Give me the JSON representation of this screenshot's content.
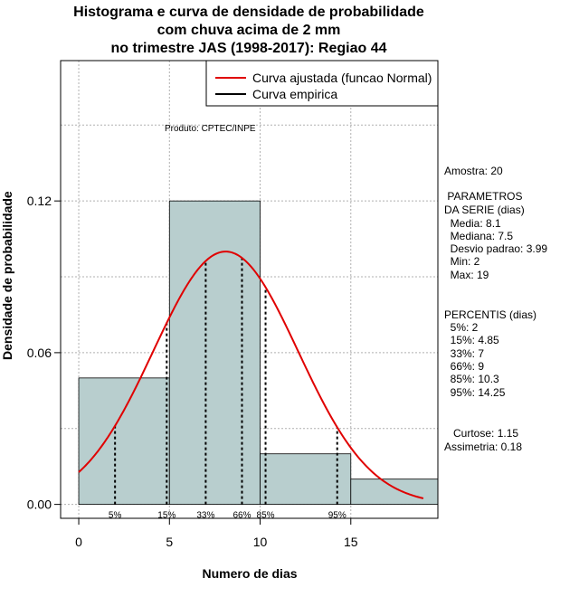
{
  "chart_data": {
    "type": "histogram",
    "title_lines": [
      "Histograma e curva de densidade de probabilidade",
      "com chuva acima de 2 mm",
      "no trimestre JAS (1998-2017): Regiao 44"
    ],
    "xlabel": "Numero de dias",
    "ylabel": "Densidade de probabilidade",
    "xlim": [
      -1,
      19.8
    ],
    "ylim": [
      -0.0055,
      0.1755
    ],
    "x_ticks": [
      0,
      5,
      10,
      15
    ],
    "y_ticks": [
      0.0,
      0.06,
      0.12
    ],
    "y_tick_labels": [
      "0.00",
      "0.06",
      "0.12"
    ],
    "grid": true,
    "bins": [
      {
        "from": 0,
        "to": 5,
        "density": 0.05
      },
      {
        "from": 5,
        "to": 10,
        "density": 0.12
      },
      {
        "from": 10,
        "to": 15,
        "density": 0.02
      },
      {
        "from": 15,
        "to": 20,
        "density": 0.01
      }
    ],
    "normal_fit": {
      "mean": 8.1,
      "sd": 3.99,
      "from": 0,
      "to": 19
    },
    "percentile_lines": [
      {
        "label": "5%",
        "value": 2
      },
      {
        "label": "15%",
        "value": 4.85
      },
      {
        "label": "33%",
        "value": 7
      },
      {
        "label": "66%",
        "value": 9
      },
      {
        "label": "85%",
        "value": 10.3
      },
      {
        "label": "95%",
        "value": 14.25
      }
    ],
    "legend": {
      "position": "top-right",
      "entries": [
        {
          "label": "Curva ajustada (funcao Normal)",
          "color": "#e00000"
        },
        {
          "label": "Curva empirica",
          "color": "#000000"
        }
      ]
    },
    "annotation": "Produto: CPTEC/INPE",
    "bar_color": "#b8cece",
    "curve_color": "#e00000"
  },
  "stats": {
    "amostra": "Amostra: 20",
    "parametros_title_1": " PARAMETROS",
    "parametros_title_2": "DA SERIE (dias)",
    "parametros": [
      "  Media: 8.1",
      "  Mediana: 7.5",
      "  Desvio padrao: 3.99",
      "  Min: 2",
      "  Max: 19"
    ],
    "percentis_title": "PERCENTIS (dias)",
    "percentis": [
      "  5%: 2",
      "  15%: 4.85",
      "  33%: 7",
      "  66%: 9",
      "  85%: 10.3",
      "  95%: 14.25"
    ],
    "curtose": "   Curtose: 1.15",
    "assimetria": "Assimetria: 0.18"
  }
}
